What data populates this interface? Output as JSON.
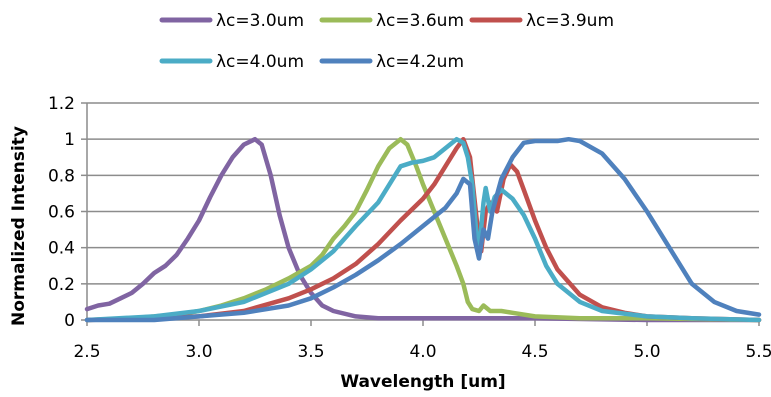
{
  "chart_data": {
    "type": "line",
    "title": "",
    "xlabel": "Wavelength [um]",
    "ylabel": "Normalized Intensity",
    "xlim": [
      2.5,
      5.5
    ],
    "ylim": [
      0,
      1.2
    ],
    "x_ticks": [
      "2.5",
      "3.0",
      "3.5",
      "4.0",
      "4.5",
      "5.0",
      "5.5"
    ],
    "y_ticks": [
      "0",
      "0.2",
      "0.4",
      "0.6",
      "0.8",
      "1",
      "1.2"
    ],
    "grid": "horizontal",
    "legend_position": "top",
    "series": [
      {
        "name": "λc=3.0um",
        "color": "#8064a2",
        "points": [
          [
            2.5,
            0.06
          ],
          [
            2.55,
            0.08
          ],
          [
            2.6,
            0.09
          ],
          [
            2.65,
            0.12
          ],
          [
            2.7,
            0.15
          ],
          [
            2.75,
            0.2
          ],
          [
            2.8,
            0.26
          ],
          [
            2.85,
            0.3
          ],
          [
            2.9,
            0.36
          ],
          [
            2.95,
            0.45
          ],
          [
            3.0,
            0.55
          ],
          [
            3.05,
            0.68
          ],
          [
            3.1,
            0.8
          ],
          [
            3.15,
            0.9
          ],
          [
            3.2,
            0.97
          ],
          [
            3.25,
            1.0
          ],
          [
            3.28,
            0.97
          ],
          [
            3.32,
            0.8
          ],
          [
            3.36,
            0.58
          ],
          [
            3.4,
            0.4
          ],
          [
            3.45,
            0.25
          ],
          [
            3.5,
            0.15
          ],
          [
            3.55,
            0.08
          ],
          [
            3.6,
            0.05
          ],
          [
            3.7,
            0.02
          ],
          [
            3.8,
            0.01
          ],
          [
            4.0,
            0.01
          ],
          [
            4.5,
            0.01
          ],
          [
            5.0,
            0.0
          ],
          [
            5.5,
            0.0
          ]
        ]
      },
      {
        "name": "λc=3.6um",
        "color": "#9bbb59",
        "points": [
          [
            2.5,
            0.0
          ],
          [
            2.7,
            0.01
          ],
          [
            2.9,
            0.03
          ],
          [
            3.0,
            0.05
          ],
          [
            3.1,
            0.08
          ],
          [
            3.2,
            0.12
          ],
          [
            3.3,
            0.17
          ],
          [
            3.4,
            0.23
          ],
          [
            3.5,
            0.3
          ],
          [
            3.55,
            0.36
          ],
          [
            3.6,
            0.45
          ],
          [
            3.65,
            0.52
          ],
          [
            3.7,
            0.6
          ],
          [
            3.75,
            0.72
          ],
          [
            3.8,
            0.85
          ],
          [
            3.85,
            0.95
          ],
          [
            3.9,
            1.0
          ],
          [
            3.93,
            0.97
          ],
          [
            3.97,
            0.85
          ],
          [
            4.0,
            0.75
          ],
          [
            4.05,
            0.6
          ],
          [
            4.1,
            0.45
          ],
          [
            4.15,
            0.3
          ],
          [
            4.18,
            0.2
          ],
          [
            4.2,
            0.1
          ],
          [
            4.22,
            0.06
          ],
          [
            4.25,
            0.05
          ],
          [
            4.27,
            0.08
          ],
          [
            4.3,
            0.05
          ],
          [
            4.35,
            0.05
          ],
          [
            4.4,
            0.04
          ],
          [
            4.5,
            0.02
          ],
          [
            4.7,
            0.01
          ],
          [
            5.0,
            0.01
          ],
          [
            5.5,
            0.0
          ]
        ]
      },
      {
        "name": "λc=3.9um",
        "color": "#c0504d",
        "points": [
          [
            2.5,
            0.0
          ],
          [
            2.8,
            0.01
          ],
          [
            3.0,
            0.02
          ],
          [
            3.2,
            0.05
          ],
          [
            3.4,
            0.12
          ],
          [
            3.5,
            0.17
          ],
          [
            3.6,
            0.23
          ],
          [
            3.7,
            0.31
          ],
          [
            3.8,
            0.42
          ],
          [
            3.9,
            0.55
          ],
          [
            4.0,
            0.67
          ],
          [
            4.05,
            0.75
          ],
          [
            4.1,
            0.85
          ],
          [
            4.15,
            0.95
          ],
          [
            4.18,
            1.0
          ],
          [
            4.21,
            0.9
          ],
          [
            4.24,
            0.55
          ],
          [
            4.26,
            0.38
          ],
          [
            4.28,
            0.6
          ],
          [
            4.3,
            0.65
          ],
          [
            4.33,
            0.6
          ],
          [
            4.36,
            0.78
          ],
          [
            4.39,
            0.86
          ],
          [
            4.42,
            0.82
          ],
          [
            4.45,
            0.72
          ],
          [
            4.5,
            0.55
          ],
          [
            4.55,
            0.4
          ],
          [
            4.6,
            0.28
          ],
          [
            4.7,
            0.14
          ],
          [
            4.8,
            0.07
          ],
          [
            4.9,
            0.04
          ],
          [
            5.0,
            0.02
          ],
          [
            5.2,
            0.01
          ],
          [
            5.5,
            0.0
          ]
        ]
      },
      {
        "name": "λc=4.0um",
        "color": "#4bacc6",
        "points": [
          [
            2.5,
            0.0
          ],
          [
            2.8,
            0.02
          ],
          [
            3.0,
            0.05
          ],
          [
            3.2,
            0.1
          ],
          [
            3.4,
            0.2
          ],
          [
            3.5,
            0.28
          ],
          [
            3.6,
            0.38
          ],
          [
            3.7,
            0.52
          ],
          [
            3.8,
            0.65
          ],
          [
            3.85,
            0.75
          ],
          [
            3.9,
            0.85
          ],
          [
            3.95,
            0.87
          ],
          [
            4.0,
            0.88
          ],
          [
            4.05,
            0.9
          ],
          [
            4.1,
            0.95
          ],
          [
            4.15,
            1.0
          ],
          [
            4.18,
            0.98
          ],
          [
            4.2,
            0.9
          ],
          [
            4.22,
            0.75
          ],
          [
            4.24,
            0.45
          ],
          [
            4.25,
            0.38
          ],
          [
            4.27,
            0.65
          ],
          [
            4.28,
            0.73
          ],
          [
            4.3,
            0.6
          ],
          [
            4.32,
            0.68
          ],
          [
            4.35,
            0.72
          ],
          [
            4.4,
            0.67
          ],
          [
            4.45,
            0.58
          ],
          [
            4.5,
            0.45
          ],
          [
            4.55,
            0.3
          ],
          [
            4.6,
            0.2
          ],
          [
            4.7,
            0.1
          ],
          [
            4.8,
            0.05
          ],
          [
            5.0,
            0.02
          ],
          [
            5.2,
            0.01
          ],
          [
            5.5,
            0.0
          ]
        ]
      },
      {
        "name": "λc=4.2um",
        "color": "#4f81bd",
        "points": [
          [
            2.5,
            0.0
          ],
          [
            2.8,
            0.0
          ],
          [
            3.0,
            0.02
          ],
          [
            3.2,
            0.04
          ],
          [
            3.4,
            0.08
          ],
          [
            3.5,
            0.12
          ],
          [
            3.6,
            0.18
          ],
          [
            3.7,
            0.25
          ],
          [
            3.8,
            0.33
          ],
          [
            3.9,
            0.42
          ],
          [
            4.0,
            0.52
          ],
          [
            4.1,
            0.62
          ],
          [
            4.15,
            0.7
          ],
          [
            4.18,
            0.78
          ],
          [
            4.21,
            0.75
          ],
          [
            4.23,
            0.45
          ],
          [
            4.25,
            0.34
          ],
          [
            4.27,
            0.5
          ],
          [
            4.29,
            0.45
          ],
          [
            4.31,
            0.6
          ],
          [
            4.35,
            0.78
          ],
          [
            4.4,
            0.9
          ],
          [
            4.45,
            0.98
          ],
          [
            4.5,
            0.99
          ],
          [
            4.6,
            0.99
          ],
          [
            4.65,
            1.0
          ],
          [
            4.7,
            0.99
          ],
          [
            4.8,
            0.92
          ],
          [
            4.9,
            0.78
          ],
          [
            5.0,
            0.6
          ],
          [
            5.1,
            0.4
          ],
          [
            5.2,
            0.2
          ],
          [
            5.3,
            0.1
          ],
          [
            5.4,
            0.05
          ],
          [
            5.5,
            0.03
          ]
        ]
      }
    ]
  }
}
